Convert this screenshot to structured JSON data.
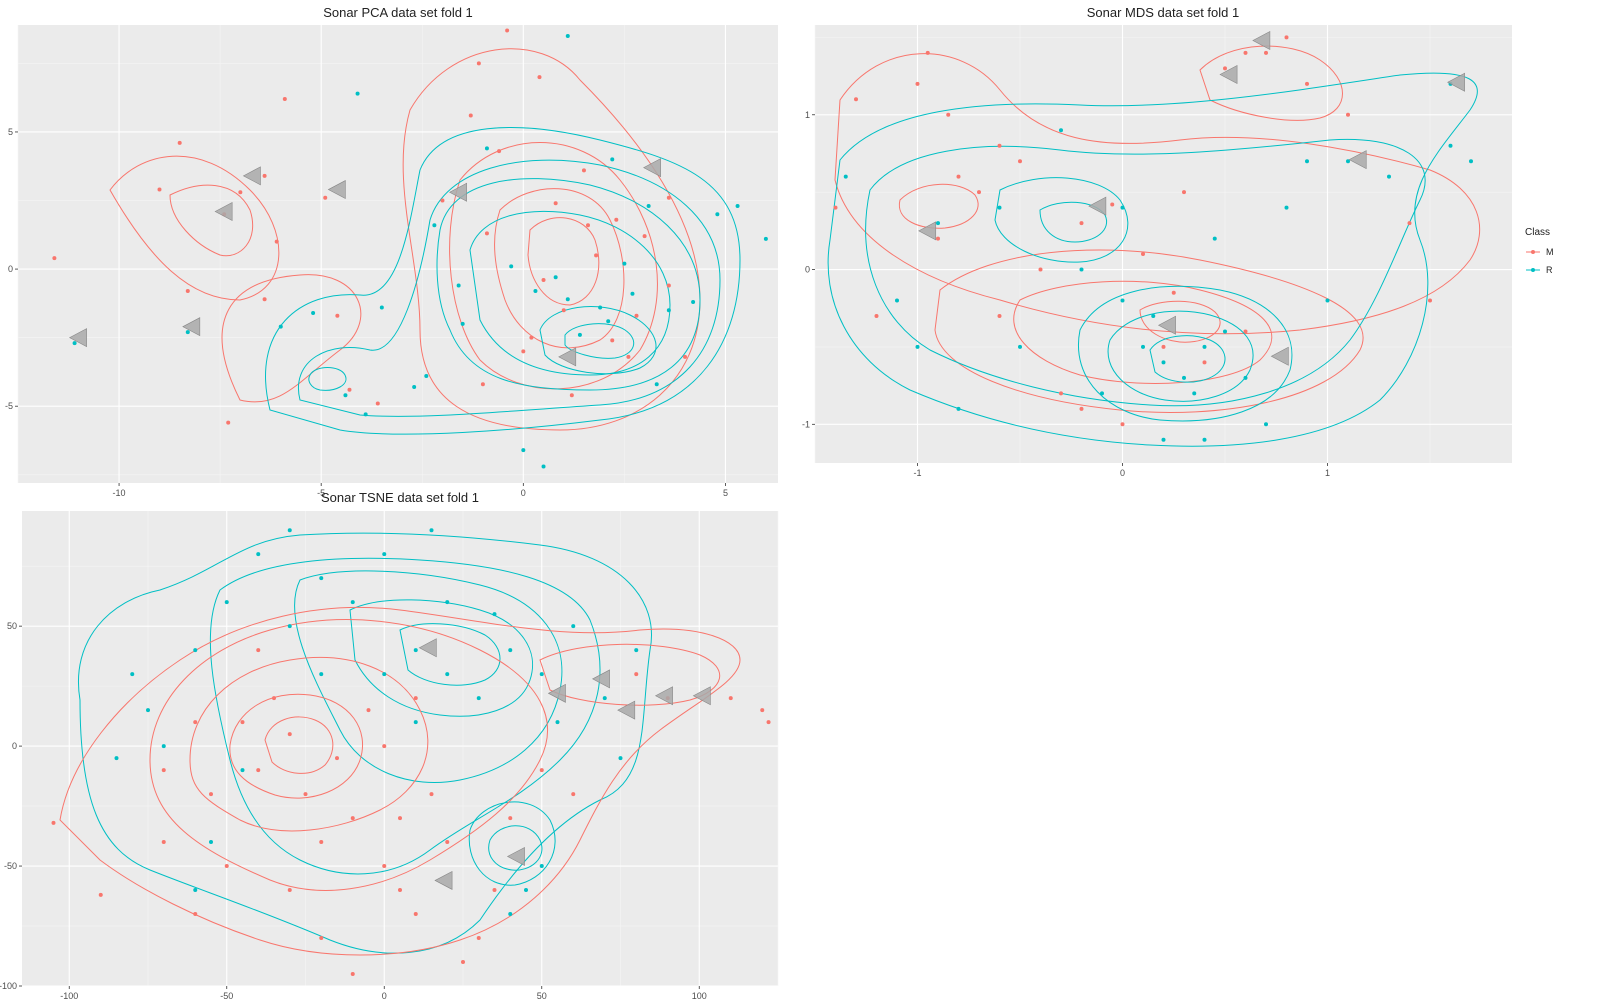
{
  "colors": {
    "M": "#F8766D",
    "R": "#00BFC4",
    "panel_bg": "#EBEBEB",
    "grid": "#FFFFFF",
    "triangle": "#A9A9A9"
  },
  "legend": {
    "title": "Class",
    "entries": [
      {
        "label": "M",
        "color": "#F8766D"
      },
      {
        "label": "R",
        "color": "#00BFC4"
      }
    ]
  },
  "chart_data": [
    {
      "type": "scatter",
      "title": "Sonar PCA data set fold 1",
      "xlim": [
        -12.5,
        6.3
      ],
      "ylim": [
        -7.8,
        8.9
      ],
      "x_ticks": [
        -10,
        -5,
        0,
        5
      ],
      "x_tick_labels": [
        "-10",
        "-5",
        "0",
        "5"
      ],
      "y_ticks": [
        -5,
        0,
        5
      ],
      "y_tick_labels": [
        "-5",
        "0",
        "5"
      ],
      "series": [
        {
          "name": "M",
          "points": [
            [
              -11.6,
              0.4
            ],
            [
              -9.0,
              2.9
            ],
            [
              -8.5,
              4.6
            ],
            [
              -7.4,
              2.0
            ],
            [
              -7.0,
              2.8
            ],
            [
              -6.4,
              3.4
            ],
            [
              -6.1,
              1.0
            ],
            [
              -5.9,
              6.2
            ],
            [
              -6.4,
              -1.1
            ],
            [
              -4.9,
              2.6
            ],
            [
              -4.6,
              -1.7
            ],
            [
              -4.3,
              -4.4
            ],
            [
              -3.6,
              -4.9
            ],
            [
              -1.1,
              7.5
            ],
            [
              -0.4,
              8.7
            ],
            [
              0.4,
              7.0
            ],
            [
              1.5,
              3.6
            ],
            [
              1.8,
              0.5
            ],
            [
              2.2,
              -2.6
            ],
            [
              1.0,
              -1.5
            ],
            [
              0.2,
              -2.5
            ],
            [
              0.0,
              -3.0
            ],
            [
              2.6,
              -3.2
            ],
            [
              3.0,
              1.2
            ],
            [
              3.6,
              2.6
            ],
            [
              3.6,
              -0.6
            ],
            [
              1.6,
              1.6
            ],
            [
              0.8,
              2.4
            ],
            [
              2.3,
              1.8
            ],
            [
              0.5,
              -0.4
            ],
            [
              -1.3,
              5.6
            ],
            [
              -1.0,
              -4.2
            ],
            [
              -7.3,
              -5.6
            ],
            [
              -8.3,
              -0.8
            ],
            [
              -0.6,
              4.3
            ],
            [
              -0.9,
              1.3
            ],
            [
              1.2,
              -4.6
            ],
            [
              2.8,
              -1.7
            ],
            [
              4.0,
              -3.2
            ],
            [
              -2.0,
              2.5
            ]
          ]
        },
        {
          "name": "R",
          "points": [
            [
              -11.1,
              -2.7
            ],
            [
              -8.3,
              -2.3
            ],
            [
              -4.1,
              6.4
            ],
            [
              -3.5,
              -1.4
            ],
            [
              -4.4,
              -4.6
            ],
            [
              -3.9,
              -5.3
            ],
            [
              -2.2,
              1.6
            ],
            [
              -1.6,
              -0.6
            ],
            [
              -0.3,
              0.1
            ],
            [
              0.3,
              -0.8
            ],
            [
              1.1,
              -1.1
            ],
            [
              2.1,
              -1.9
            ],
            [
              2.7,
              -0.9
            ],
            [
              3.1,
              2.3
            ],
            [
              3.6,
              -1.5
            ],
            [
              4.8,
              2.0
            ],
            [
              5.3,
              2.3
            ],
            [
              6.0,
              1.1
            ],
            [
              1.1,
              8.5
            ],
            [
              0.0,
              -6.6
            ],
            [
              0.5,
              -7.2
            ],
            [
              -2.4,
              -3.9
            ],
            [
              -1.5,
              -2.0
            ],
            [
              2.5,
              0.2
            ],
            [
              1.9,
              -1.4
            ],
            [
              0.8,
              -0.3
            ],
            [
              4.2,
              -1.2
            ],
            [
              -0.9,
              4.4
            ],
            [
              -5.2,
              -1.6
            ],
            [
              -6.0,
              -2.1
            ],
            [
              3.3,
              -4.2
            ],
            [
              2.2,
              4.0
            ],
            [
              -2.7,
              -4.3
            ],
            [
              1.4,
              -2.4
            ]
          ]
        }
      ],
      "markers": [
        [
          -11.0,
          -2.5
        ],
        [
          -8.2,
          -2.1
        ],
        [
          -7.4,
          2.1
        ],
        [
          -6.7,
          3.4
        ],
        [
          -4.6,
          2.9
        ],
        [
          -1.6,
          2.8
        ],
        [
          3.2,
          3.7
        ],
        [
          1.1,
          -3.2
        ]
      ]
    },
    {
      "type": "scatter",
      "title": "Sonar MDS data set fold 1",
      "xlim": [
        -1.5,
        1.9
      ],
      "ylim": [
        -1.25,
        1.58
      ],
      "x_ticks": [
        -1,
        0,
        1
      ],
      "x_tick_labels": [
        "-1",
        "0",
        "1"
      ],
      "y_ticks": [
        -1,
        0,
        1
      ],
      "y_tick_labels": [
        "-1",
        "0",
        "1"
      ],
      "series": [
        {
          "name": "M",
          "points": [
            [
              -1.4,
              0.4
            ],
            [
              -1.3,
              1.1
            ],
            [
              -1.0,
              1.2
            ],
            [
              -0.95,
              1.4
            ],
            [
              -0.85,
              1.0
            ],
            [
              -0.7,
              0.5
            ],
            [
              -0.8,
              0.6
            ],
            [
              -0.6,
              0.8
            ],
            [
              -0.5,
              0.7
            ],
            [
              -0.9,
              0.2
            ],
            [
              -0.6,
              -0.3
            ],
            [
              -0.3,
              -0.8
            ],
            [
              -0.2,
              -0.9
            ],
            [
              0.0,
              -1.0
            ],
            [
              0.2,
              -0.5
            ],
            [
              0.4,
              -0.6
            ],
            [
              0.6,
              1.4
            ],
            [
              0.7,
              1.4
            ],
            [
              0.8,
              1.5
            ],
            [
              0.9,
              1.2
            ],
            [
              0.5,
              1.3
            ],
            [
              1.1,
              1.0
            ],
            [
              1.4,
              0.3
            ],
            [
              1.5,
              -0.2
            ],
            [
              0.1,
              0.1
            ],
            [
              -0.2,
              0.3
            ],
            [
              0.3,
              0.5
            ],
            [
              -0.4,
              0.0
            ],
            [
              -1.2,
              -0.3
            ],
            [
              0.6,
              -0.4
            ],
            [
              -0.05,
              0.42
            ],
            [
              0.25,
              -0.15
            ]
          ]
        },
        {
          "name": "R",
          "points": [
            [
              -1.35,
              0.6
            ],
            [
              -1.1,
              -0.2
            ],
            [
              -0.9,
              0.3
            ],
            [
              -0.8,
              -0.9
            ],
            [
              -0.6,
              0.4
            ],
            [
              -0.2,
              0.0
            ],
            [
              0.0,
              -0.2
            ],
            [
              0.1,
              -0.5
            ],
            [
              0.2,
              -0.6
            ],
            [
              0.3,
              -0.7
            ],
            [
              0.35,
              -0.8
            ],
            [
              0.4,
              -0.5
            ],
            [
              0.5,
              -0.4
            ],
            [
              0.6,
              -0.7
            ],
            [
              0.7,
              -1.0
            ],
            [
              0.9,
              0.7
            ],
            [
              1.1,
              0.7
            ],
            [
              1.3,
              0.6
            ],
            [
              1.6,
              1.2
            ],
            [
              1.7,
              0.7
            ],
            [
              1.6,
              0.8
            ],
            [
              0.8,
              0.4
            ],
            [
              -0.1,
              -0.8
            ],
            [
              0.2,
              -1.1
            ],
            [
              0.4,
              -1.1
            ],
            [
              -0.3,
              0.9
            ],
            [
              0.0,
              0.4
            ],
            [
              0.15,
              -0.3
            ],
            [
              -0.5,
              -0.5
            ],
            [
              1.0,
              -0.2
            ],
            [
              -1.0,
              -0.5
            ],
            [
              0.45,
              0.2
            ]
          ]
        }
      ],
      "markers": [
        [
          0.68,
          1.48
        ],
        [
          0.52,
          1.26
        ],
        [
          1.63,
          1.21
        ],
        [
          1.15,
          0.71
        ],
        [
          -0.12,
          0.41
        ],
        [
          -0.95,
          0.25
        ],
        [
          0.22,
          -0.36
        ],
        [
          0.77,
          -0.56
        ]
      ]
    },
    {
      "type": "scatter",
      "title": "Sonar TSNE data set fold 1",
      "xlim": [
        -115,
        125
      ],
      "ylim": [
        -100,
        98
      ],
      "x_ticks": [
        -100,
        -50,
        0,
        50,
        100
      ],
      "x_tick_labels": [
        "-100",
        "-50",
        "0",
        "50",
        "100"
      ],
      "y_ticks": [
        -100,
        -50,
        0,
        50
      ],
      "y_tick_labels": [
        "-100",
        "-50",
        "0",
        "50"
      ],
      "series": [
        {
          "name": "M",
          "points": [
            [
              -105,
              -32
            ],
            [
              -90,
              -62
            ],
            [
              -70,
              -40
            ],
            [
              -60,
              -70
            ],
            [
              -55,
              -20
            ],
            [
              -45,
              10
            ],
            [
              -40,
              -10
            ],
            [
              -35,
              20
            ],
            [
              -30,
              5
            ],
            [
              -25,
              -20
            ],
            [
              -20,
              -40
            ],
            [
              -15,
              -5
            ],
            [
              -10,
              -30
            ],
            [
              -5,
              15
            ],
            [
              0,
              -50
            ],
            [
              5,
              -60
            ],
            [
              10,
              -70
            ],
            [
              15,
              -20
            ],
            [
              20,
              -40
            ],
            [
              25,
              -90
            ],
            [
              30,
              -80
            ],
            [
              -20,
              -80
            ],
            [
              -10,
              -95
            ],
            [
              40,
              -30
            ],
            [
              50,
              -10
            ],
            [
              60,
              -20
            ],
            [
              80,
              30
            ],
            [
              90,
              20
            ],
            [
              110,
              20
            ],
            [
              120,
              15
            ],
            [
              122,
              10
            ],
            [
              -40,
              40
            ],
            [
              -50,
              -50
            ],
            [
              -30,
              -60
            ],
            [
              0,
              0
            ],
            [
              10,
              20
            ],
            [
              -60,
              10
            ],
            [
              -70,
              -10
            ],
            [
              5,
              -30
            ],
            [
              35,
              -60
            ]
          ]
        },
        {
          "name": "R",
          "points": [
            [
              -80,
              30
            ],
            [
              -75,
              15
            ],
            [
              -70,
              0
            ],
            [
              -60,
              40
            ],
            [
              -50,
              60
            ],
            [
              -40,
              80
            ],
            [
              -30,
              90
            ],
            [
              -20,
              70
            ],
            [
              -10,
              60
            ],
            [
              0,
              80
            ],
            [
              10,
              40
            ],
            [
              15,
              90
            ],
            [
              20,
              30
            ],
            [
              30,
              20
            ],
            [
              40,
              40
            ],
            [
              50,
              30
            ],
            [
              55,
              10
            ],
            [
              60,
              50
            ],
            [
              70,
              20
            ],
            [
              75,
              -5
            ],
            [
              80,
              40
            ],
            [
              40,
              -70
            ],
            [
              45,
              -60
            ],
            [
              50,
              -50
            ],
            [
              -60,
              -60
            ],
            [
              -55,
              -40
            ],
            [
              -45,
              -10
            ],
            [
              -30,
              50
            ],
            [
              -20,
              30
            ],
            [
              0,
              30
            ],
            [
              20,
              60
            ],
            [
              35,
              55
            ],
            [
              -85,
              -5
            ],
            [
              10,
              10
            ]
          ]
        }
      ],
      "markers": [
        [
          14,
          41
        ],
        [
          19,
          -56
        ],
        [
          42,
          -46
        ],
        [
          55,
          22
        ],
        [
          69,
          28
        ],
        [
          77,
          15
        ],
        [
          89,
          21
        ],
        [
          101,
          21
        ]
      ]
    }
  ]
}
